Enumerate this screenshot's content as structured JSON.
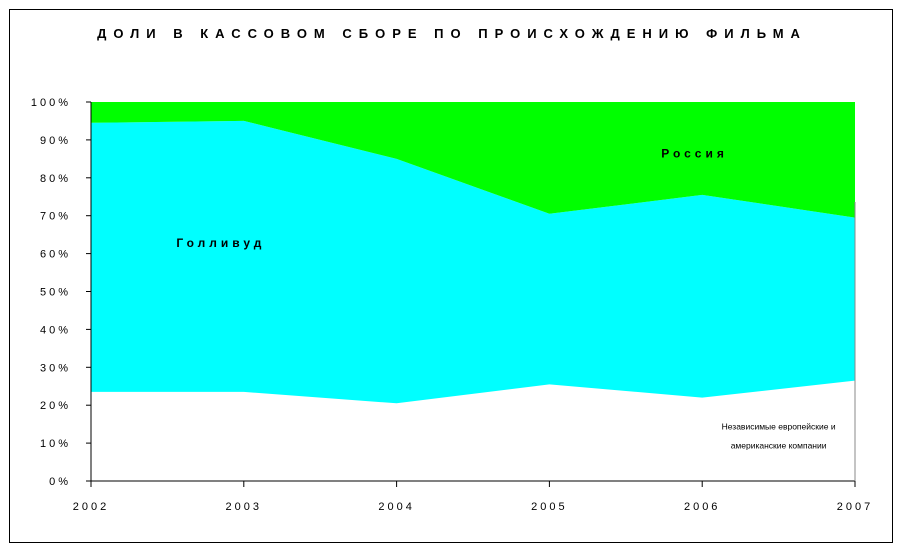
{
  "chart_data": {
    "type": "area",
    "stacked": true,
    "percent": true,
    "title": "ДОЛИ В КАССОВОМ СБОРЕ ПО ПРОИСХОЖДЕНИЮ ФИЛЬМА",
    "categories": [
      "2002",
      "2003",
      "2004",
      "2005",
      "2006",
      "2007"
    ],
    "y_ticks": [
      "0%",
      "10%",
      "20%",
      "30%",
      "40%",
      "50%",
      "60%",
      "70%",
      "80%",
      "90%",
      "100%"
    ],
    "ylim": [
      0,
      100
    ],
    "series": [
      {
        "name": "Независимые европейские и американские компании",
        "label_lines": [
          "Независимые европейские и",
          "американские компании"
        ],
        "values": [
          23.5,
          23.5,
          20.5,
          25.5,
          22,
          26.5
        ],
        "color": "#ffffff"
      },
      {
        "name": "Голливуд",
        "values": [
          71,
          71.5,
          64.5,
          45,
          53.5,
          43
        ],
        "color": "#00ffff"
      },
      {
        "name": "Россия",
        "values": [
          5.5,
          5,
          15,
          29.5,
          24.5,
          30.5
        ],
        "color": "#00ff00"
      }
    ]
  }
}
